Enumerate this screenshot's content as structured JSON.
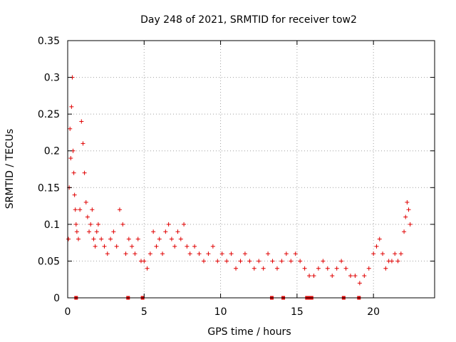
{
  "chart_data": {
    "type": "scatter",
    "title": "Day 248 of 2021, SRMTID for receiver tow2",
    "xlabel": "GPS time / hours",
    "ylabel": "SRMTID / TECUs",
    "xlim": [
      0,
      24
    ],
    "ylim": [
      0,
      0.35
    ],
    "x_ticks": [
      0,
      5,
      10,
      15,
      20
    ],
    "x_tick_labels": [
      "0",
      "5",
      "10",
      "15",
      "20"
    ],
    "y_ticks": [
      0,
      0.05,
      0.1,
      0.15,
      0.2,
      0.25,
      0.3,
      0.35
    ],
    "y_tick_labels": [
      "0",
      "0.05",
      "0.1",
      "0.15",
      "0.2",
      "0.25",
      "0.3",
      "0.35"
    ],
    "grid": true,
    "marker": "+",
    "color": "#e00000",
    "series": [
      {
        "name": "SRMTID",
        "x": [
          0.05,
          0.1,
          0.15,
          0.2,
          0.25,
          0.3,
          0.35,
          0.4,
          0.45,
          0.5,
          0.55,
          0.6,
          0.7,
          0.8,
          0.9,
          1.0,
          1.1,
          1.2,
          1.3,
          1.4,
          1.5,
          1.6,
          1.7,
          1.8,
          1.9,
          2.0,
          2.2,
          2.4,
          2.6,
          2.8,
          3.0,
          3.2,
          3.4,
          3.6,
          3.8,
          4.0,
          4.2,
          4.4,
          4.6,
          4.8,
          5.0,
          5.2,
          5.4,
          5.6,
          5.8,
          6.0,
          6.2,
          6.4,
          6.6,
          6.8,
          7.0,
          7.2,
          7.4,
          7.6,
          7.8,
          8.0,
          8.3,
          8.6,
          8.9,
          9.2,
          9.5,
          9.8,
          10.1,
          10.4,
          10.7,
          11.0,
          11.3,
          11.6,
          11.9,
          12.2,
          12.5,
          12.8,
          13.1,
          13.4,
          13.7,
          14.0,
          14.3,
          14.6,
          14.9,
          15.2,
          15.5,
          15.8,
          16.1,
          16.4,
          16.7,
          17.0,
          17.3,
          17.6,
          17.9,
          18.2,
          18.5,
          18.8,
          19.1,
          19.4,
          19.7,
          20.0,
          20.2,
          20.4,
          20.6,
          20.8,
          21.0,
          21.2,
          21.4,
          21.6,
          21.8,
          22.0,
          22.1,
          22.2,
          22.3,
          22.4
        ],
        "y": [
          0.08,
          0.15,
          0.23,
          0.19,
          0.26,
          0.3,
          0.2,
          0.17,
          0.14,
          0.12,
          0.1,
          0.09,
          0.08,
          0.12,
          0.24,
          0.21,
          0.17,
          0.13,
          0.11,
          0.09,
          0.1,
          0.12,
          0.08,
          0.07,
          0.09,
          0.1,
          0.08,
          0.07,
          0.06,
          0.08,
          0.09,
          0.07,
          0.12,
          0.1,
          0.06,
          0.08,
          0.07,
          0.06,
          0.08,
          0.05,
          0.05,
          0.04,
          0.06,
          0.09,
          0.07,
          0.08,
          0.06,
          0.09,
          0.1,
          0.08,
          0.07,
          0.09,
          0.08,
          0.1,
          0.07,
          0.06,
          0.07,
          0.06,
          0.05,
          0.06,
          0.07,
          0.05,
          0.06,
          0.05,
          0.06,
          0.04,
          0.05,
          0.06,
          0.05,
          0.04,
          0.05,
          0.04,
          0.06,
          0.05,
          0.04,
          0.05,
          0.06,
          0.05,
          0.06,
          0.05,
          0.04,
          0.03,
          0.03,
          0.04,
          0.05,
          0.04,
          0.03,
          0.04,
          0.05,
          0.04,
          0.03,
          0.03,
          0.02,
          0.03,
          0.04,
          0.06,
          0.07,
          0.08,
          0.06,
          0.04,
          0.05,
          0.05,
          0.06,
          0.05,
          0.06,
          0.09,
          0.11,
          0.13,
          0.12,
          0.1
        ]
      }
    ],
    "gap_markers_x": [
      0.55,
      3.95,
      4.9,
      13.35,
      14.1,
      15.65,
      15.8,
      15.95,
      18.05,
      19.05
    ]
  }
}
